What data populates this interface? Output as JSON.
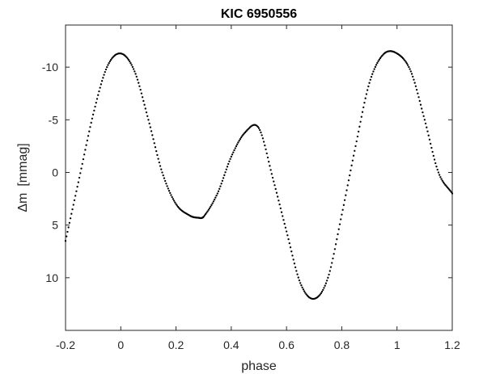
{
  "chart_data": {
    "type": "scatter",
    "title": "KIC 6950556",
    "xlabel": "phase",
    "ylabel_symbol": "Δm",
    "ylabel_unit": "[mmag]",
    "xlim": [
      -0.2,
      1.2
    ],
    "ylim": [
      15,
      -14
    ],
    "y_reversed": true,
    "grid": false,
    "xticks": [
      -0.2,
      0,
      0.2,
      0.4,
      0.6,
      0.8,
      1,
      1.2
    ],
    "xtick_labels": [
      "-0.2",
      "0",
      "0.2",
      "0.4",
      "0.6",
      "0.8",
      "1",
      "1.2"
    ],
    "yticks": [
      -10,
      -5,
      0,
      5,
      10
    ],
    "ytick_labels": [
      "-10",
      "-5",
      "0",
      "5",
      "10"
    ],
    "marker_color": "#000000",
    "series": [
      {
        "x": [
          -0.2,
          -0.15,
          -0.1,
          -0.05,
          0.0,
          0.05,
          0.1,
          0.15,
          0.2,
          0.25,
          0.28,
          0.3,
          0.35,
          0.4,
          0.45,
          0.5,
          0.55,
          0.6,
          0.65,
          0.7,
          0.75,
          0.8,
          0.85,
          0.9,
          0.95,
          1.0,
          1.05,
          1.1,
          1.15,
          1.2
        ],
        "y": [
          6.5,
          0.5,
          -5.5,
          -10.0,
          -11.3,
          -9.6,
          -5.0,
          0.0,
          3.0,
          4.1,
          4.3,
          4.2,
          2.0,
          -1.5,
          -3.8,
          -4.2,
          0.5,
          5.6,
          10.5,
          12.0,
          10.0,
          4.0,
          -2.5,
          -8.5,
          -11.2,
          -11.3,
          -9.6,
          -5.0,
          0.0,
          2.0
        ]
      }
    ]
  }
}
